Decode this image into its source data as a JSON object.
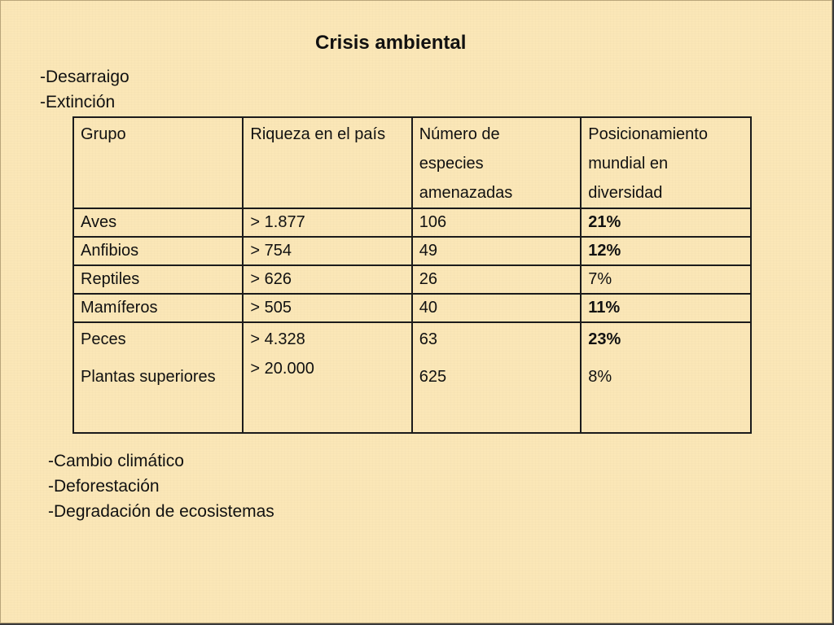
{
  "title": "Crisis ambiental",
  "top_list": [
    "-Desarraigo",
    "-Extinción"
  ],
  "table": {
    "headers": {
      "grupo": "Grupo",
      "riqueza": "Riqueza en el país",
      "numero": [
        "Número de",
        "especies",
        "amenazadas"
      ],
      "posicion": [
        "Posicionamiento",
        "mundial en",
        "diversidad"
      ]
    },
    "rows": [
      {
        "grupo": "Aves",
        "riqueza": "> 1.877",
        "numero": "106",
        "posicion": "21%",
        "posicion_bold": true
      },
      {
        "grupo": "Anfibios",
        "riqueza": "> 754",
        "numero": "49",
        "posicion": "12%",
        "posicion_bold": true
      },
      {
        "grupo": "Reptiles",
        "riqueza": "> 626",
        "numero": "26",
        "posicion": "7%",
        "posicion_bold": false
      },
      {
        "grupo": "Mamíferos",
        "riqueza": "> 505",
        "numero": "40",
        "posicion": "11%",
        "posicion_bold": true
      }
    ],
    "last_row": {
      "grupo": [
        "Peces",
        "Plantas superiores"
      ],
      "riqueza": [
        "> 4.328",
        "> 20.000"
      ],
      "numero": [
        "63",
        "625"
      ],
      "posicion": [
        "23%",
        "8%"
      ]
    }
  },
  "bottom_list": [
    "-Cambio climático",
    "-Deforestación",
    "-Degradación de ecosistemas"
  ],
  "colors": {
    "background": "#fbe7b7",
    "text": "#111111",
    "border": "#1b1b1b"
  }
}
